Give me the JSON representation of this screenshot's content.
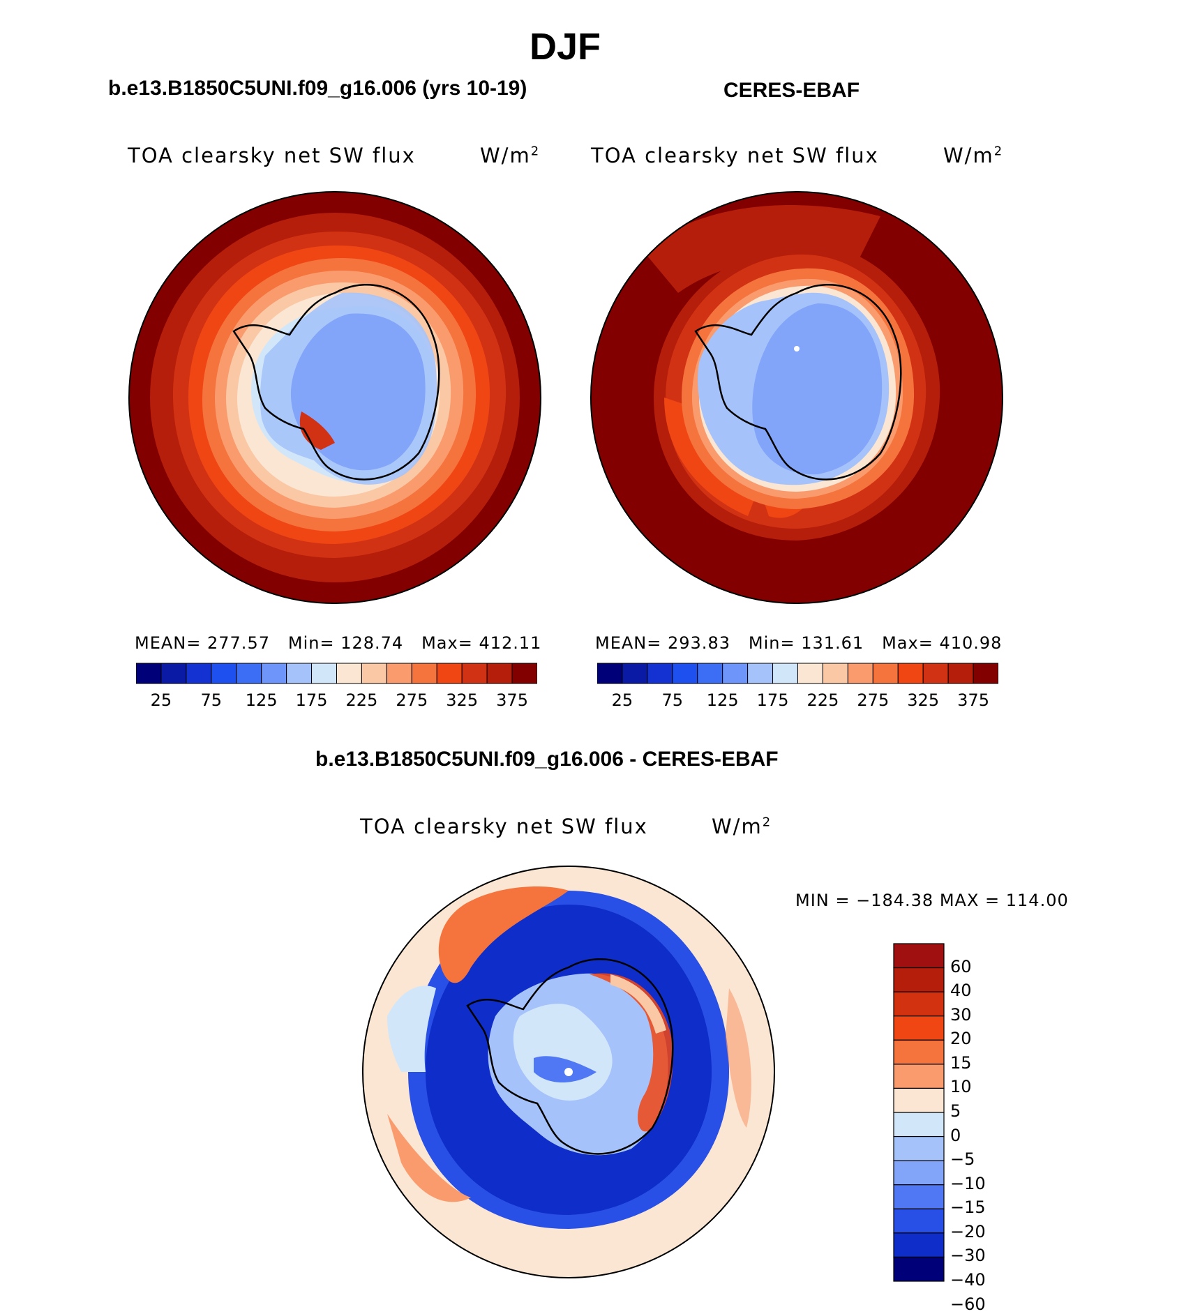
{
  "figure_title": "DJF",
  "panels": {
    "model": {
      "title": "b.e13.B1850C5UNI.f09_g16.006 (yrs 10-19)",
      "variable": "TOA clearsky net SW flux",
      "units": "W/m",
      "units_exp": "2",
      "mean_label": "MEAN=",
      "mean": "277.57",
      "min_label": "Min=",
      "min": "128.74",
      "max_label": "Max=",
      "max": "412.11"
    },
    "obs": {
      "title": "CERES-EBAF",
      "variable": "TOA clearsky net SW flux",
      "units": "W/m",
      "units_exp": "2",
      "mean_label": "MEAN=",
      "mean": "293.83",
      "min_label": "Min=",
      "min": "131.61",
      "max_label": "Max=",
      "max": "410.98"
    },
    "diff": {
      "title": "b.e13.B1850C5UNI.f09_g16.006 - CERES-EBAF",
      "variable": "TOA clearsky net SW flux",
      "units": "W/m",
      "units_exp": "2",
      "minmax": "MIN = −184.38 MAX = 114.00"
    }
  },
  "colorbars": {
    "absolute": {
      "colors": [
        "#000078",
        "#0a1aa4",
        "#1432d2",
        "#1e50f0",
        "#3c6ef5",
        "#6e96fa",
        "#a5c3fa",
        "#d2e6fa",
        "#fae6d2",
        "#fac8a5",
        "#fa9b6e",
        "#f5733c",
        "#f04614",
        "#d23214",
        "#b41e0a",
        "#820000"
      ],
      "ticks": [
        "25",
        "75",
        "125",
        "175",
        "225",
        "275",
        "325",
        "375"
      ]
    },
    "difference": {
      "colors_top_to_bottom": [
        "#a01010",
        "#b41e0a",
        "#d2320f",
        "#f04614",
        "#f5733c",
        "#fa9b6e",
        "#fae6d2",
        "#d2e6fa",
        "#a5c3fa",
        "#82a5fa",
        "#5078f5",
        "#2850e6",
        "#0f2dc8",
        "#000078"
      ],
      "ticks": [
        "60",
        "40",
        "30",
        "20",
        "15",
        "10",
        "5",
        "0",
        "−5",
        "−10",
        "−15",
        "−20",
        "−30",
        "−40",
        "−60"
      ]
    }
  }
}
